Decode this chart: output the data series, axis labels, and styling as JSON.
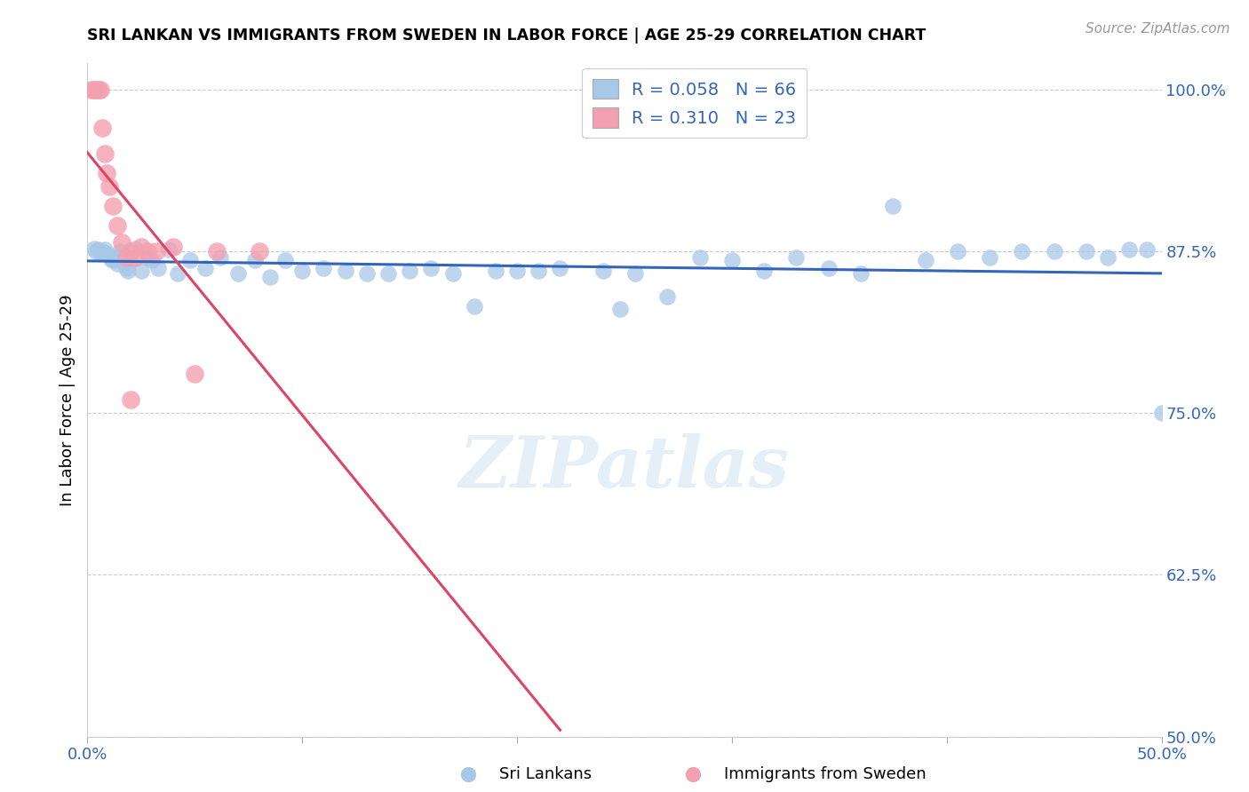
{
  "title": "SRI LANKAN VS IMMIGRANTS FROM SWEDEN IN LABOR FORCE | AGE 25-29 CORRELATION CHART",
  "source_text": "Source: ZipAtlas.com",
  "ylabel": "In Labor Force | Age 25-29",
  "xlim": [
    0.0,
    0.5
  ],
  "ylim": [
    0.5,
    1.02
  ],
  "xtick_vals": [
    0.0,
    0.1,
    0.2,
    0.3,
    0.4,
    0.5
  ],
  "xtick_labels": [
    "0.0%",
    "",
    "",
    "",
    "",
    "50.0%"
  ],
  "ytick_vals_right": [
    1.0,
    0.875,
    0.75,
    0.625,
    0.5
  ],
  "ytick_labels_right": [
    "100.0%",
    "87.5%",
    "75.0%",
    "62.5%",
    "50.0%"
  ],
  "blue_R": 0.058,
  "blue_N": 66,
  "pink_R": 0.31,
  "pink_N": 23,
  "blue_color": "#a8c8e8",
  "pink_color": "#f4a0b0",
  "blue_line_color": "#3366bb",
  "pink_line_color": "#dd4466",
  "legend_label_blue": "Sri Lankans",
  "legend_label_pink": "Immigrants from Sweden",
  "watermark": "ZIPatlas",
  "blue_scatter_x": [
    0.003,
    0.004,
    0.005,
    0.006,
    0.007,
    0.008,
    0.009,
    0.01,
    0.011,
    0.012,
    0.013,
    0.014,
    0.015,
    0.016,
    0.017,
    0.018,
    0.019,
    0.02,
    0.022,
    0.025,
    0.028,
    0.03,
    0.033,
    0.038,
    0.042,
    0.048,
    0.055,
    0.062,
    0.07,
    0.078,
    0.085,
    0.092,
    0.1,
    0.11,
    0.12,
    0.13,
    0.14,
    0.15,
    0.16,
    0.17,
    0.18,
    0.19,
    0.2,
    0.21,
    0.22,
    0.24,
    0.255,
    0.27,
    0.285,
    0.3,
    0.315,
    0.33,
    0.345,
    0.36,
    0.375,
    0.39,
    0.405,
    0.42,
    0.435,
    0.45,
    0.465,
    0.475,
    0.485,
    0.493,
    0.248,
    0.5
  ],
  "blue_scatter_y": [
    0.877,
    0.875,
    0.876,
    0.874,
    0.875,
    0.876,
    0.873,
    0.872,
    0.869,
    0.868,
    0.87,
    0.865,
    0.875,
    0.87,
    0.866,
    0.862,
    0.86,
    0.868,
    0.877,
    0.86,
    0.87,
    0.868,
    0.862,
    0.876,
    0.858,
    0.868,
    0.862,
    0.87,
    0.858,
    0.868,
    0.855,
    0.868,
    0.86,
    0.862,
    0.86,
    0.858,
    0.858,
    0.86,
    0.862,
    0.858,
    0.832,
    0.86,
    0.86,
    0.86,
    0.862,
    0.86,
    0.858,
    0.84,
    0.87,
    0.868,
    0.86,
    0.87,
    0.862,
    0.858,
    0.91,
    0.868,
    0.875,
    0.87,
    0.875,
    0.875,
    0.875,
    0.87,
    0.876,
    0.876,
    0.83,
    0.75
  ],
  "pink_scatter_x": [
    0.002,
    0.003,
    0.004,
    0.005,
    0.006,
    0.007,
    0.008,
    0.009,
    0.01,
    0.012,
    0.014,
    0.016,
    0.018,
    0.02,
    0.022,
    0.025,
    0.028,
    0.032,
    0.04,
    0.05,
    0.06,
    0.08,
    0.02
  ],
  "pink_scatter_y": [
    1.0,
    1.0,
    1.0,
    1.0,
    1.0,
    0.97,
    0.95,
    0.935,
    0.925,
    0.91,
    0.895,
    0.882,
    0.87,
    0.875,
    0.87,
    0.878,
    0.875,
    0.875,
    0.878,
    0.78,
    0.875,
    0.875,
    0.76
  ],
  "blue_dot_size": 180,
  "pink_dot_size": 220
}
